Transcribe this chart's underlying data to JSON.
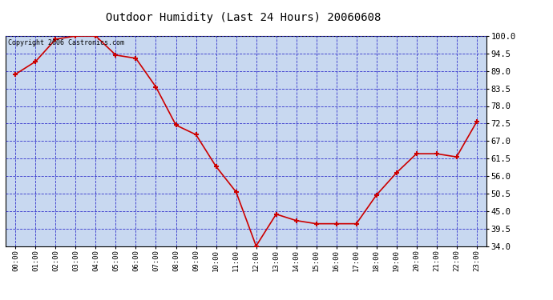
{
  "title": "Outdoor Humidity (Last 24 Hours) 20060608",
  "copyright_text": "Copyright 2006 Castronics.com",
  "hours": [
    0,
    1,
    2,
    3,
    4,
    5,
    6,
    7,
    8,
    9,
    10,
    11,
    12,
    13,
    14,
    15,
    16,
    17,
    18,
    19,
    20,
    21,
    22,
    23
  ],
  "x_labels": [
    "00:00",
    "01:00",
    "02:00",
    "03:00",
    "04:00",
    "05:00",
    "06:00",
    "07:00",
    "08:00",
    "09:00",
    "10:00",
    "11:00",
    "12:00",
    "13:00",
    "14:00",
    "15:00",
    "16:00",
    "17:00",
    "18:00",
    "19:00",
    "20:00",
    "21:00",
    "22:00",
    "23:00"
  ],
  "humidity": [
    88,
    92,
    99,
    100,
    100,
    94,
    93,
    84,
    72,
    69,
    59,
    51,
    34,
    44,
    42,
    41,
    41,
    41,
    50,
    57,
    63,
    63,
    62,
    73
  ],
  "line_color": "#cc0000",
  "marker_color": "#cc0000",
  "plot_bg": "#c8d8f0",
  "grid_color": "#3333cc",
  "title_color": "#000000",
  "y_min": 34.0,
  "y_max": 100.0,
  "y_ticks": [
    34.0,
    39.5,
    45.0,
    50.5,
    56.0,
    61.5,
    67.0,
    72.5,
    78.0,
    83.5,
    89.0,
    94.5,
    100.0
  ]
}
